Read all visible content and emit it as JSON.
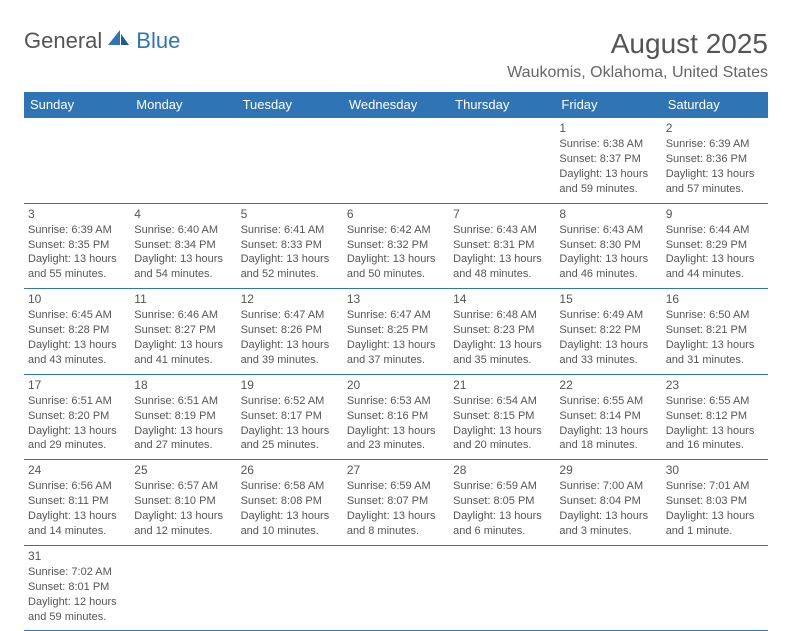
{
  "brand": {
    "general": "General",
    "blue": "Blue"
  },
  "title": "August 2025",
  "location": "Waukomis, Oklahoma, United States",
  "colors": {
    "header_bg": "#2f75b5",
    "header_text": "#ffffff",
    "border": "#2f75b5",
    "text": "#555555",
    "background": "#ffffff"
  },
  "weekdays": [
    "Sunday",
    "Monday",
    "Tuesday",
    "Wednesday",
    "Thursday",
    "Friday",
    "Saturday"
  ],
  "weeks": [
    [
      null,
      null,
      null,
      null,
      null,
      {
        "n": "1",
        "sr": "Sunrise: 6:38 AM",
        "ss": "Sunset: 8:37 PM",
        "dl": "Daylight: 13 hours and 59 minutes."
      },
      {
        "n": "2",
        "sr": "Sunrise: 6:39 AM",
        "ss": "Sunset: 8:36 PM",
        "dl": "Daylight: 13 hours and 57 minutes."
      }
    ],
    [
      {
        "n": "3",
        "sr": "Sunrise: 6:39 AM",
        "ss": "Sunset: 8:35 PM",
        "dl": "Daylight: 13 hours and 55 minutes."
      },
      {
        "n": "4",
        "sr": "Sunrise: 6:40 AM",
        "ss": "Sunset: 8:34 PM",
        "dl": "Daylight: 13 hours and 54 minutes."
      },
      {
        "n": "5",
        "sr": "Sunrise: 6:41 AM",
        "ss": "Sunset: 8:33 PM",
        "dl": "Daylight: 13 hours and 52 minutes."
      },
      {
        "n": "6",
        "sr": "Sunrise: 6:42 AM",
        "ss": "Sunset: 8:32 PM",
        "dl": "Daylight: 13 hours and 50 minutes."
      },
      {
        "n": "7",
        "sr": "Sunrise: 6:43 AM",
        "ss": "Sunset: 8:31 PM",
        "dl": "Daylight: 13 hours and 48 minutes."
      },
      {
        "n": "8",
        "sr": "Sunrise: 6:43 AM",
        "ss": "Sunset: 8:30 PM",
        "dl": "Daylight: 13 hours and 46 minutes."
      },
      {
        "n": "9",
        "sr": "Sunrise: 6:44 AM",
        "ss": "Sunset: 8:29 PM",
        "dl": "Daylight: 13 hours and 44 minutes."
      }
    ],
    [
      {
        "n": "10",
        "sr": "Sunrise: 6:45 AM",
        "ss": "Sunset: 8:28 PM",
        "dl": "Daylight: 13 hours and 43 minutes."
      },
      {
        "n": "11",
        "sr": "Sunrise: 6:46 AM",
        "ss": "Sunset: 8:27 PM",
        "dl": "Daylight: 13 hours and 41 minutes."
      },
      {
        "n": "12",
        "sr": "Sunrise: 6:47 AM",
        "ss": "Sunset: 8:26 PM",
        "dl": "Daylight: 13 hours and 39 minutes."
      },
      {
        "n": "13",
        "sr": "Sunrise: 6:47 AM",
        "ss": "Sunset: 8:25 PM",
        "dl": "Daylight: 13 hours and 37 minutes."
      },
      {
        "n": "14",
        "sr": "Sunrise: 6:48 AM",
        "ss": "Sunset: 8:23 PM",
        "dl": "Daylight: 13 hours and 35 minutes."
      },
      {
        "n": "15",
        "sr": "Sunrise: 6:49 AM",
        "ss": "Sunset: 8:22 PM",
        "dl": "Daylight: 13 hours and 33 minutes."
      },
      {
        "n": "16",
        "sr": "Sunrise: 6:50 AM",
        "ss": "Sunset: 8:21 PM",
        "dl": "Daylight: 13 hours and 31 minutes."
      }
    ],
    [
      {
        "n": "17",
        "sr": "Sunrise: 6:51 AM",
        "ss": "Sunset: 8:20 PM",
        "dl": "Daylight: 13 hours and 29 minutes."
      },
      {
        "n": "18",
        "sr": "Sunrise: 6:51 AM",
        "ss": "Sunset: 8:19 PM",
        "dl": "Daylight: 13 hours and 27 minutes."
      },
      {
        "n": "19",
        "sr": "Sunrise: 6:52 AM",
        "ss": "Sunset: 8:17 PM",
        "dl": "Daylight: 13 hours and 25 minutes."
      },
      {
        "n": "20",
        "sr": "Sunrise: 6:53 AM",
        "ss": "Sunset: 8:16 PM",
        "dl": "Daylight: 13 hours and 23 minutes."
      },
      {
        "n": "21",
        "sr": "Sunrise: 6:54 AM",
        "ss": "Sunset: 8:15 PM",
        "dl": "Daylight: 13 hours and 20 minutes."
      },
      {
        "n": "22",
        "sr": "Sunrise: 6:55 AM",
        "ss": "Sunset: 8:14 PM",
        "dl": "Daylight: 13 hours and 18 minutes."
      },
      {
        "n": "23",
        "sr": "Sunrise: 6:55 AM",
        "ss": "Sunset: 8:12 PM",
        "dl": "Daylight: 13 hours and 16 minutes."
      }
    ],
    [
      {
        "n": "24",
        "sr": "Sunrise: 6:56 AM",
        "ss": "Sunset: 8:11 PM",
        "dl": "Daylight: 13 hours and 14 minutes."
      },
      {
        "n": "25",
        "sr": "Sunrise: 6:57 AM",
        "ss": "Sunset: 8:10 PM",
        "dl": "Daylight: 13 hours and 12 minutes."
      },
      {
        "n": "26",
        "sr": "Sunrise: 6:58 AM",
        "ss": "Sunset: 8:08 PM",
        "dl": "Daylight: 13 hours and 10 minutes."
      },
      {
        "n": "27",
        "sr": "Sunrise: 6:59 AM",
        "ss": "Sunset: 8:07 PM",
        "dl": "Daylight: 13 hours and 8 minutes."
      },
      {
        "n": "28",
        "sr": "Sunrise: 6:59 AM",
        "ss": "Sunset: 8:05 PM",
        "dl": "Daylight: 13 hours and 6 minutes."
      },
      {
        "n": "29",
        "sr": "Sunrise: 7:00 AM",
        "ss": "Sunset: 8:04 PM",
        "dl": "Daylight: 13 hours and 3 minutes."
      },
      {
        "n": "30",
        "sr": "Sunrise: 7:01 AM",
        "ss": "Sunset: 8:03 PM",
        "dl": "Daylight: 13 hours and 1 minute."
      }
    ],
    [
      {
        "n": "31",
        "sr": "Sunrise: 7:02 AM",
        "ss": "Sunset: 8:01 PM",
        "dl": "Daylight: 12 hours and 59 minutes."
      },
      null,
      null,
      null,
      null,
      null,
      null
    ]
  ]
}
